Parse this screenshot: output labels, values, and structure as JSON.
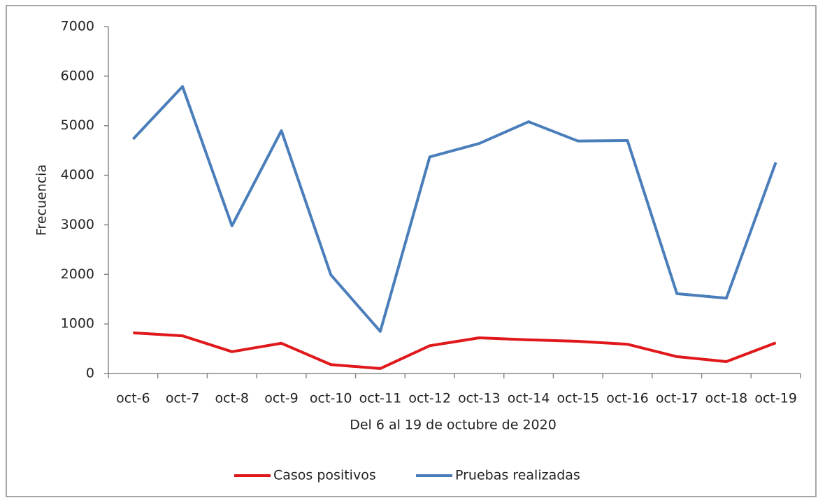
{
  "chart_data": {
    "type": "line",
    "x_label": "Del 6 al 19 de octubre de 2020",
    "y_label": "Frecuencia",
    "categories": [
      "oct-6",
      "oct-7",
      "oct-8",
      "oct-9",
      "oct-10",
      "oct-11",
      "oct-12",
      "oct-13",
      "oct-14",
      "oct-15",
      "oct-16",
      "oct-17",
      "oct-18",
      "oct-19"
    ],
    "series": [
      {
        "name": "Casos positivos",
        "color": "#e0181b",
        "values": [
          820,
          760,
          440,
          610,
          180,
          100,
          560,
          720,
          680,
          650,
          590,
          340,
          240,
          620
        ]
      },
      {
        "name": "Pruebas realizadas",
        "color": "#4a7ebb",
        "values": [
          4730,
          5790,
          2980,
          4900,
          1990,
          850,
          4370,
          4640,
          5080,
          4690,
          4700,
          1610,
          1520,
          4260
        ]
      }
    ],
    "ylim": [
      0,
      7000
    ],
    "yticks": [
      0,
      1000,
      2000,
      3000,
      4000,
      5000,
      6000,
      7000
    ],
    "grid": false,
    "legend": "bottom"
  }
}
